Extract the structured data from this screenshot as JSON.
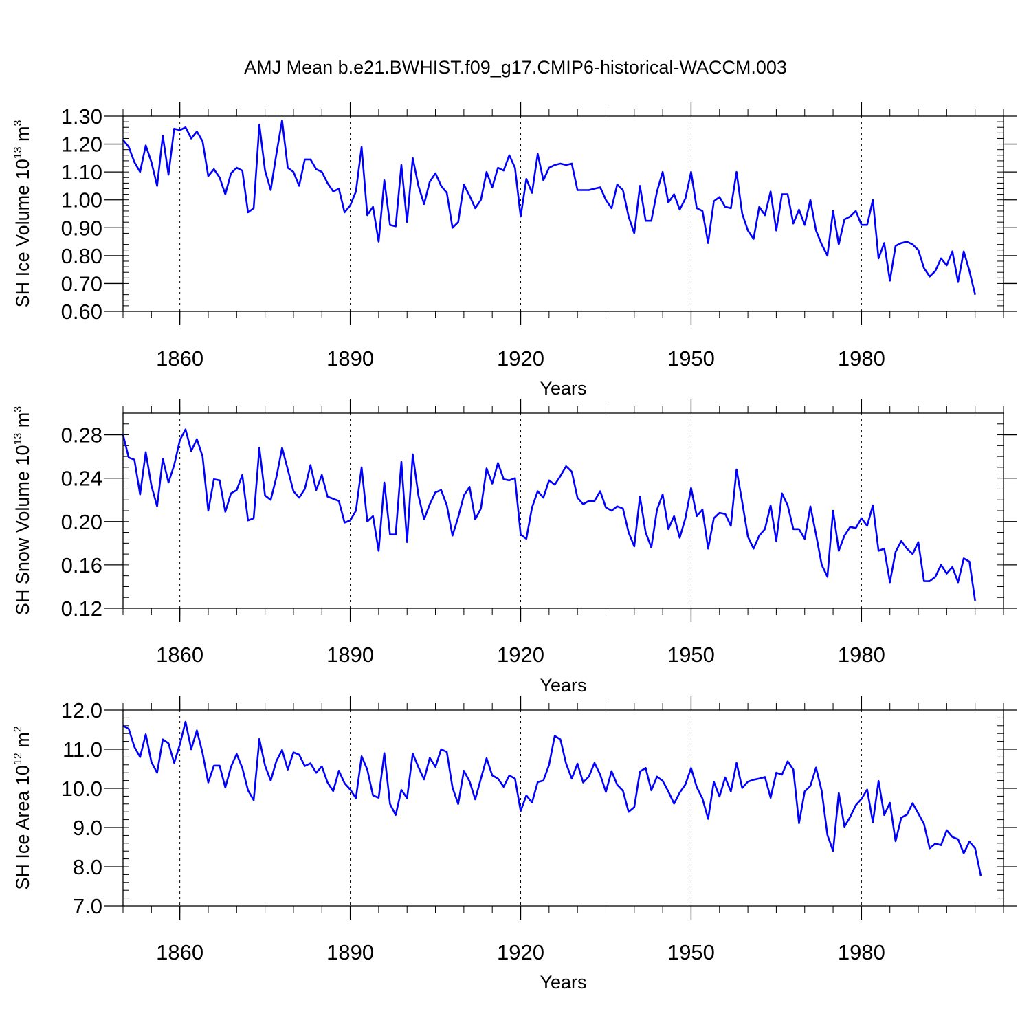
{
  "figure": {
    "title": "AMJ Mean b.e21.BWHIST.f09_g17.CMIP6-historical-WACCM.003",
    "line_color": "#0000ff"
  },
  "chart_data": [
    {
      "type": "line",
      "ylabel_main": "SH Ice Volume 10",
      "ylabel_exp": "13",
      "ylabel_unit": " m",
      "ylabel_unit_exp": "3",
      "xlabel": "Years",
      "xlim": [
        1850,
        2005
      ],
      "ylim": [
        0.6,
        1.3
      ],
      "yticks": [
        0.6,
        0.7,
        0.8,
        0.9,
        1.0,
        1.1,
        1.2,
        1.3
      ],
      "ytick_labels": [
        "0.60",
        "0.70",
        "0.80",
        "0.90",
        "1.00",
        "1.10",
        "1.20",
        "1.30"
      ],
      "yminor_step": 0.02,
      "xticks": [
        1860,
        1890,
        1920,
        1950,
        1980
      ],
      "xtick_labels": [
        "1860",
        "1890",
        "1920",
        "1950",
        "1980"
      ],
      "xminor_step": 5,
      "x_start": 1850,
      "values": [
        1.215,
        1.19,
        1.135,
        1.1,
        1.195,
        1.135,
        1.05,
        1.23,
        1.09,
        1.255,
        1.25,
        1.26,
        1.22,
        1.245,
        1.21,
        1.085,
        1.11,
        1.08,
        1.02,
        1.095,
        1.115,
        1.105,
        0.955,
        0.97,
        1.27,
        1.105,
        1.035,
        1.165,
        1.285,
        1.115,
        1.1,
        1.05,
        1.145,
        1.145,
        1.11,
        1.1,
        1.06,
        1.03,
        1.04,
        0.955,
        0.98,
        1.03,
        1.19,
        0.945,
        0.975,
        0.85,
        1.07,
        0.91,
        0.905,
        1.125,
        0.92,
        1.15,
        1.05,
        0.985,
        1.065,
        1.095,
        1.05,
        1.025,
        0.9,
        0.92,
        1.055,
        1.015,
        0.97,
        1.0,
        1.1,
        1.045,
        1.115,
        1.105,
        1.16,
        1.115,
        0.94,
        1.075,
        1.025,
        1.165,
        1.07,
        1.115,
        1.125,
        1.13,
        1.125,
        1.13,
        1.035,
        1.035,
        1.035,
        1.04,
        1.045,
        1.0,
        0.97,
        1.055,
        1.035,
        0.94,
        0.88,
        1.05,
        0.925,
        0.925,
        1.03,
        1.1,
        0.99,
        1.02,
        0.965,
        1.005,
        1.1,
        0.97,
        0.96,
        0.845,
        0.995,
        1.01,
        0.975,
        0.97,
        1.1,
        0.95,
        0.89,
        0.86,
        0.975,
        0.945,
        1.03,
        0.89,
        1.02,
        1.02,
        0.915,
        0.965,
        0.91,
        1.0,
        0.89,
        0.84,
        0.8,
        0.96,
        0.84,
        0.93,
        0.94,
        0.96,
        0.91,
        0.91,
        1.0,
        0.79,
        0.845,
        0.71,
        0.835,
        0.845,
        0.85,
        0.84,
        0.82,
        0.755,
        0.725,
        0.745,
        0.79,
        0.765,
        0.815,
        0.705,
        0.815,
        0.745,
        0.66
      ]
    },
    {
      "type": "line",
      "ylabel_main": "SH Snow Volume 10",
      "ylabel_exp": "13",
      "ylabel_unit": " m",
      "ylabel_unit_exp": "3",
      "xlabel": "Years",
      "xlim": [
        1850,
        2005
      ],
      "ylim": [
        0.12,
        0.3
      ],
      "yticks": [
        0.12,
        0.16,
        0.2,
        0.24,
        0.28
      ],
      "ytick_labels": [
        "0.12",
        "0.16",
        "0.20",
        "0.24",
        "0.28"
      ],
      "yminor_step": 0.01,
      "xticks": [
        1860,
        1890,
        1920,
        1950,
        1980
      ],
      "xtick_labels": [
        "1860",
        "1890",
        "1920",
        "1950",
        "1980"
      ],
      "xminor_step": 5,
      "x_start": 1850,
      "values": [
        0.28,
        0.259,
        0.257,
        0.225,
        0.264,
        0.233,
        0.214,
        0.258,
        0.236,
        0.252,
        0.275,
        0.285,
        0.265,
        0.276,
        0.26,
        0.21,
        0.239,
        0.238,
        0.209,
        0.226,
        0.229,
        0.243,
        0.201,
        0.203,
        0.268,
        0.224,
        0.22,
        0.241,
        0.268,
        0.248,
        0.228,
        0.222,
        0.23,
        0.252,
        0.229,
        0.243,
        0.223,
        0.221,
        0.219,
        0.199,
        0.201,
        0.21,
        0.25,
        0.2,
        0.205,
        0.173,
        0.236,
        0.188,
        0.188,
        0.255,
        0.181,
        0.262,
        0.224,
        0.202,
        0.216,
        0.227,
        0.229,
        0.215,
        0.187,
        0.204,
        0.224,
        0.232,
        0.202,
        0.212,
        0.249,
        0.235,
        0.254,
        0.239,
        0.238,
        0.24,
        0.188,
        0.184,
        0.213,
        0.228,
        0.222,
        0.238,
        0.234,
        0.242,
        0.251,
        0.246,
        0.222,
        0.216,
        0.219,
        0.219,
        0.228,
        0.213,
        0.21,
        0.214,
        0.212,
        0.19,
        0.177,
        0.223,
        0.19,
        0.176,
        0.211,
        0.225,
        0.193,
        0.205,
        0.185,
        0.203,
        0.231,
        0.205,
        0.211,
        0.175,
        0.203,
        0.208,
        0.207,
        0.196,
        0.248,
        0.218,
        0.186,
        0.175,
        0.187,
        0.193,
        0.215,
        0.182,
        0.226,
        0.215,
        0.193,
        0.193,
        0.184,
        0.214,
        0.188,
        0.16,
        0.149,
        0.21,
        0.173,
        0.187,
        0.195,
        0.194,
        0.203,
        0.196,
        0.215,
        0.173,
        0.175,
        0.144,
        0.172,
        0.182,
        0.175,
        0.17,
        0.181,
        0.145,
        0.145,
        0.149,
        0.16,
        0.152,
        0.158,
        0.144,
        0.166,
        0.163,
        0.127
      ]
    },
    {
      "type": "line",
      "ylabel_main": "SH Ice Area 10",
      "ylabel_exp": "12",
      "ylabel_unit": " m",
      "ylabel_unit_exp": "2",
      "xlabel": "Years",
      "xlim": [
        1850,
        2005
      ],
      "ylim": [
        7.0,
        12.0
      ],
      "yticks": [
        7.0,
        8.0,
        9.0,
        10.0,
        11.0,
        12.0
      ],
      "ytick_labels": [
        "7.0",
        "8.0",
        "9.0",
        "10.0",
        "11.0",
        "12.0"
      ],
      "yminor_step": 0.2,
      "xticks": [
        1860,
        1890,
        1920,
        1950,
        1980
      ],
      "xtick_labels": [
        "1860",
        "1890",
        "1920",
        "1950",
        "1980"
      ],
      "xminor_step": 5,
      "x_start": 1850,
      "values": [
        11.6,
        11.52,
        11.06,
        10.8,
        11.38,
        10.67,
        10.4,
        11.25,
        11.15,
        10.65,
        11.12,
        11.7,
        11.0,
        11.48,
        10.9,
        10.15,
        10.58,
        10.58,
        10.02,
        10.55,
        10.88,
        10.52,
        9.95,
        9.7,
        11.26,
        10.58,
        10.2,
        10.7,
        10.98,
        10.48,
        10.92,
        10.86,
        10.57,
        10.64,
        10.4,
        10.56,
        10.15,
        9.93,
        10.45,
        10.13,
        9.97,
        9.75,
        10.82,
        10.48,
        9.82,
        9.76,
        10.9,
        9.6,
        9.32,
        9.96,
        9.75,
        10.89,
        10.54,
        10.23,
        10.78,
        10.55,
        11.0,
        10.93,
        10.02,
        9.6,
        10.45,
        10.18,
        9.72,
        10.25,
        10.77,
        10.33,
        10.25,
        10.04,
        10.33,
        10.25,
        9.42,
        9.82,
        9.64,
        10.16,
        10.2,
        10.6,
        11.34,
        11.25,
        10.63,
        10.25,
        10.63,
        10.15,
        10.3,
        10.65,
        10.35,
        9.91,
        10.44,
        10.09,
        9.94,
        9.4,
        9.52,
        10.43,
        10.52,
        9.95,
        10.3,
        10.19,
        9.92,
        9.61,
        9.89,
        10.1,
        10.52,
        10.03,
        9.74,
        9.22,
        10.17,
        9.79,
        10.28,
        9.92,
        10.65,
        10.01,
        10.17,
        10.22,
        10.25,
        10.29,
        9.76,
        10.4,
        10.35,
        10.69,
        10.48,
        9.11,
        9.92,
        10.06,
        10.53,
        9.93,
        8.81,
        8.4,
        9.88,
        9.02,
        9.27,
        9.57,
        9.73,
        9.97,
        9.13,
        10.19,
        9.32,
        9.63,
        8.65,
        9.25,
        9.33,
        9.62,
        9.36,
        9.09,
        8.47,
        8.59,
        8.55,
        8.93,
        8.76,
        8.7,
        8.34,
        8.64,
        8.47,
        7.77
      ]
    }
  ]
}
